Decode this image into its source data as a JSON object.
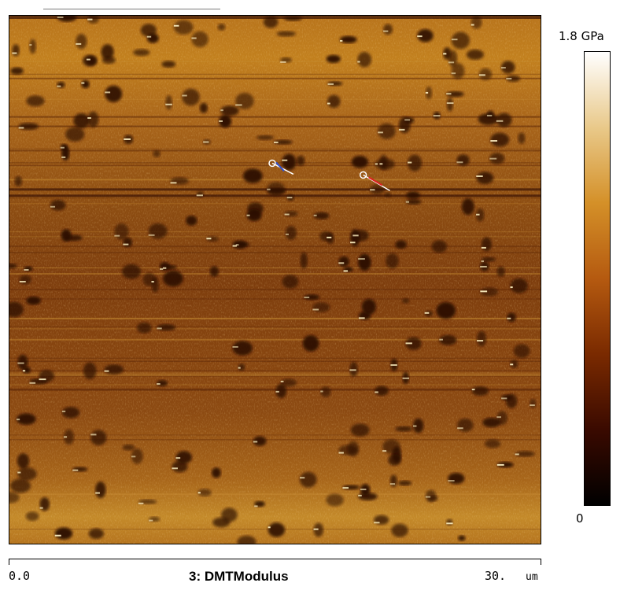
{
  "image": {
    "channel_title": "3: DMTModulus",
    "x_axis_min": "0.0",
    "x_axis_max": "30.",
    "x_axis_unit": "um"
  },
  "colorbar": {
    "max_label": "1.8 GPa",
    "min_label": "0",
    "colormap": [
      "#000000",
      "#3a0a00",
      "#7a2a00",
      "#b55a10",
      "#d49028",
      "#e9c98a",
      "#ffffff"
    ]
  },
  "markers": [
    {
      "color": "#3050d0",
      "name": "blue-cursor"
    },
    {
      "color": "#e02020",
      "name": "red-cursor"
    }
  ],
  "colors": {
    "background": "#8a4a10",
    "dark_spot": "#2a0a00",
    "bright_speck": "#f5e6b8"
  }
}
